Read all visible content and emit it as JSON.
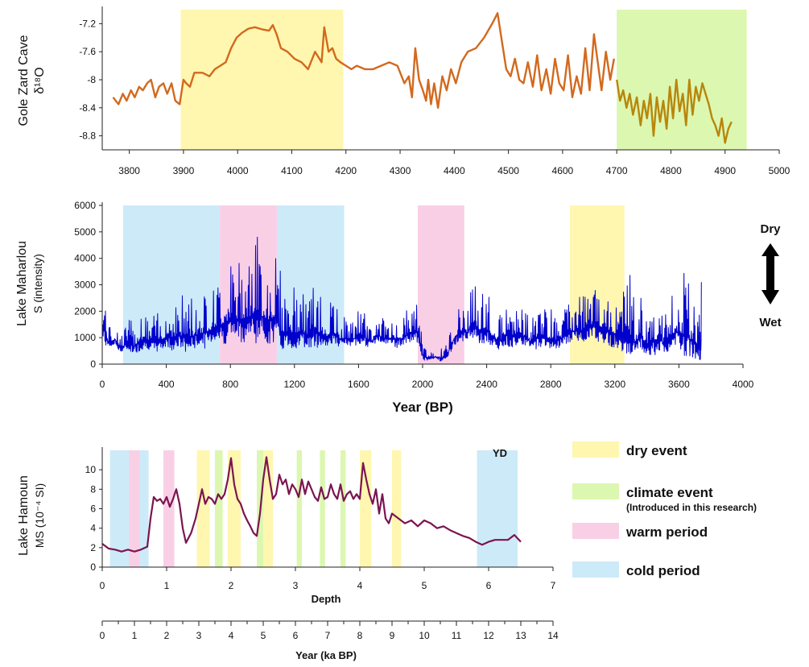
{
  "chart_data": [
    {
      "type": "line",
      "ylabel_line1": "Gole Zard Cave",
      "ylabel_line2": "δ¹⁸O",
      "xlim": [
        3750,
        5000
      ],
      "ylim": [
        -9.0,
        -7.0
      ],
      "y_inverted": true,
      "xticks": [
        "3800",
        "3900",
        "4000",
        "4100",
        "4200",
        "4300",
        "4400",
        "4500",
        "4600",
        "4700",
        "4800",
        "4900",
        "5000"
      ],
      "yticks": [
        "-7.2",
        "-7.6",
        "-8",
        "-8.4",
        "-8.8"
      ],
      "line_color": "#d2691e",
      "line_color2": "#b8860b",
      "bands": [
        {
          "kind": "dry",
          "x0": 3895,
          "x1": 4195
        },
        {
          "kind": "climate",
          "x0": 4700,
          "x1": 4940
        }
      ],
      "series": [
        {
          "x": [
            3770,
            3780,
            3788,
            3795,
            3803,
            3810,
            3818,
            3825,
            3833,
            3840,
            3848,
            3855,
            3863,
            3870,
            3878,
            3885,
            3893,
            3900,
            3905,
            3912,
            3920,
            3935,
            3948,
            3958,
            3968,
            3978,
            3988,
            3998,
            4008,
            4020,
            4032,
            4045,
            4058,
            4065,
            4072,
            4080,
            4092,
            4105,
            4118,
            4130,
            4143,
            4155,
            4160,
            4168,
            4175,
            4182,
            4190,
            4200,
            4210,
            4220,
            4235,
            4250,
            4265,
            4280,
            4295,
            4308,
            4316,
            4322,
            4328,
            4335,
            4342,
            4348,
            4352,
            4357,
            4363,
            4370,
            4378,
            4386,
            4394,
            4403,
            4413,
            4425,
            4440,
            4455,
            4470,
            4480,
            4488,
            4496,
            4504,
            4512,
            4520,
            4528,
            4536,
            4545,
            4553,
            4561,
            4570,
            4578,
            4586,
            4594,
            4602,
            4610,
            4618,
            4626,
            4634,
            4642,
            4650,
            4658,
            4665,
            4672,
            4680,
            4688,
            4695
          ],
          "y": [
            -8.25,
            -8.35,
            -8.2,
            -8.3,
            -8.15,
            -8.25,
            -8.1,
            -8.15,
            -8.05,
            -8.0,
            -8.25,
            -8.1,
            -8.05,
            -8.2,
            -8.05,
            -8.3,
            -8.35,
            -8.0,
            -8.05,
            -8.1,
            -7.9,
            -7.9,
            -7.95,
            -7.85,
            -7.8,
            -7.75,
            -7.55,
            -7.4,
            -7.33,
            -7.27,
            -7.25,
            -7.28,
            -7.3,
            -7.22,
            -7.35,
            -7.55,
            -7.6,
            -7.7,
            -7.75,
            -7.85,
            -7.6,
            -7.75,
            -7.25,
            -7.6,
            -7.55,
            -7.7,
            -7.75,
            -7.8,
            -7.85,
            -7.8,
            -7.85,
            -7.85,
            -7.8,
            -7.75,
            -7.8,
            -8.05,
            -7.95,
            -8.25,
            -7.55,
            -8.0,
            -8.15,
            -8.3,
            -8.0,
            -8.35,
            -8.05,
            -8.4,
            -7.95,
            -8.15,
            -7.85,
            -8.05,
            -7.75,
            -7.6,
            -7.55,
            -7.4,
            -7.2,
            -7.05,
            -7.45,
            -7.85,
            -7.95,
            -7.7,
            -8.0,
            -8.05,
            -7.75,
            -8.1,
            -7.65,
            -8.15,
            -7.85,
            -8.2,
            -7.7,
            -8.05,
            -8.15,
            -7.65,
            -8.25,
            -7.95,
            -8.2,
            -7.55,
            -8.15,
            -7.35,
            -7.75,
            -8.15,
            -7.6,
            -8.0,
            -7.7
          ]
        },
        {
          "x": [
            4700,
            4706,
            4712,
            4718,
            4724,
            4730,
            4737,
            4744,
            4750,
            4756,
            4762,
            4768,
            4774,
            4780,
            4786,
            4792,
            4798,
            4804,
            4810,
            4816,
            4822,
            4828,
            4834,
            4840,
            4846,
            4852,
            4858,
            4864,
            4870,
            4876,
            4882,
            4888,
            4894,
            4900,
            4906,
            4912
          ],
          "y": [
            -8.0,
            -8.3,
            -8.15,
            -8.4,
            -8.2,
            -8.5,
            -8.25,
            -8.65,
            -8.3,
            -8.55,
            -8.2,
            -8.8,
            -8.25,
            -8.6,
            -8.3,
            -8.7,
            -8.1,
            -8.55,
            -8.0,
            -8.45,
            -8.2,
            -8.65,
            -8.0,
            -8.5,
            -8.1,
            -8.3,
            -8.05,
            -8.2,
            -8.35,
            -8.55,
            -8.65,
            -8.8,
            -8.55,
            -8.9,
            -8.7,
            -8.6
          ]
        }
      ]
    },
    {
      "type": "line",
      "ylabel_line1": "Lake  Maharlou",
      "ylabel_line2": "S (intensity)",
      "xlabel": "Year (BP)",
      "xlim": [
        0,
        4000
      ],
      "ylim": [
        0,
        6000
      ],
      "xticks": [
        "0",
        "400",
        "800",
        "1200",
        "1600",
        "2000",
        "2400",
        "2800",
        "3200",
        "3600",
        "4000"
      ],
      "yticks": [
        "0",
        "1000",
        "2000",
        "3000",
        "4000",
        "5000",
        "6000"
      ],
      "line_color": "#0000cc",
      "bands": [
        {
          "kind": "cold",
          "x0": 130,
          "x1": 735
        },
        {
          "kind": "warm",
          "x0": 735,
          "x1": 1090
        },
        {
          "kind": "cold",
          "x0": 1090,
          "x1": 1510
        },
        {
          "kind": "warm",
          "x0": 1970,
          "x1": 2260
        },
        {
          "kind": "dry",
          "x0": 2920,
          "x1": 3260
        }
      ],
      "dry_label": "Dry",
      "wet_label": "Wet",
      "series": [
        {
          "x": [
            0,
            40,
            80,
            120,
            160,
            200,
            240,
            280,
            320,
            360,
            400,
            440,
            480,
            520,
            560,
            600,
            640,
            680,
            720,
            760,
            800,
            840,
            880,
            920,
            960,
            1000,
            1040,
            1080,
            1120,
            1160,
            1200,
            1240,
            1280,
            1320,
            1360,
            1400,
            1440,
            1480,
            1520,
            1560,
            1600,
            1640,
            1680,
            1720,
            1760,
            1800,
            1840,
            1880,
            1920,
            1960,
            2000,
            2040,
            2080,
            2120,
            2160,
            2200,
            2240,
            2280,
            2320,
            2360,
            2400,
            2440,
            2480,
            2520,
            2560,
            2600,
            2640,
            2680,
            2720,
            2760,
            2800,
            2840,
            2880,
            2920,
            2960,
            3000,
            3040,
            3080,
            3120,
            3160,
            3200,
            3240,
            3280,
            3320,
            3360,
            3400,
            3440,
            3480,
            3520,
            3560,
            3600,
            3640,
            3680,
            3720,
            3740
          ],
          "y_low": [
            800,
            600,
            700,
            400,
            500,
            400,
            500,
            600,
            400,
            500,
            600,
            500,
            600,
            400,
            500,
            700,
            600,
            800,
            900,
            700,
            1000,
            900,
            800,
            1000,
            800,
            900,
            700,
            800,
            500,
            600,
            500,
            700,
            600,
            500,
            700,
            600,
            800,
            600,
            700,
            600,
            800,
            700,
            600,
            900,
            700,
            800,
            600,
            700,
            800,
            900,
            100,
            150,
            200,
            100,
            300,
            700,
            900,
            800,
            1000,
            700,
            800,
            600,
            500,
            700,
            600,
            800,
            700,
            500,
            600,
            700,
            500,
            600,
            700,
            800,
            900,
            800,
            1000,
            900,
            800,
            700,
            600,
            500,
            400,
            300,
            500,
            400,
            300,
            500,
            300,
            600,
            400,
            300,
            200,
            100,
            200
          ],
          "y_high": [
            3700,
            1400,
            1600,
            1200,
            1800,
            1500,
            2200,
            1800,
            2100,
            1900,
            2400,
            2600,
            2500,
            2900,
            2700,
            2400,
            3000,
            2800,
            3200,
            3900,
            4000,
            3800,
            4500,
            4200,
            5000,
            4500,
            4400,
            4800,
            3300,
            3000,
            3100,
            2800,
            2600,
            3200,
            2700,
            2300,
            2400,
            2000,
            1800,
            1700,
            2200,
            1900,
            1600,
            1700,
            1800,
            1500,
            2000,
            1800,
            2300,
            2500,
            1100,
            400,
            500,
            600,
            900,
            2000,
            2300,
            2400,
            3400,
            2600,
            2800,
            2200,
            1900,
            2200,
            2500,
            2400,
            2000,
            1800,
            2400,
            2100,
            2300,
            1800,
            2100,
            2500,
            2400,
            2700,
            3000,
            2900,
            3100,
            2700,
            2800,
            2300,
            4300,
            2400,
            2600,
            1800,
            2600,
            2300,
            1900,
            2800,
            3700,
            3400,
            3000,
            2700,
            3100
          ]
        }
      ]
    },
    {
      "type": "line",
      "ylabel_line1": "Lake Hamoun",
      "ylabel_line2": "MS (10⁻⁴ SI)",
      "xlabel": "Depth",
      "xlabel2": "Year (ka BP)",
      "xlim": [
        0,
        7
      ],
      "ylim": [
        0,
        12
      ],
      "xticks": [
        "0",
        "1",
        "2",
        "3",
        "4",
        "5",
        "6",
        "7"
      ],
      "yticks": [
        "0",
        "2",
        "4",
        "6",
        "8",
        "10"
      ],
      "x2ticks": [
        "0",
        "1",
        "2",
        "3",
        "4",
        "5",
        "6",
        "7",
        "8",
        "9",
        "10",
        "11",
        "12",
        "13",
        "14"
      ],
      "line_color": "#7b1450",
      "bands": [
        {
          "kind": "cold",
          "x0": 0.12,
          "x1": 0.72
        },
        {
          "kind": "warm",
          "x0": 0.42,
          "x1": 0.58
        },
        {
          "kind": "warm",
          "x0": 0.95,
          "x1": 1.12
        },
        {
          "kind": "dry",
          "x0": 1.47,
          "x1": 1.67
        },
        {
          "kind": "climate",
          "x0": 1.75,
          "x1": 1.87
        },
        {
          "kind": "dry",
          "x0": 1.95,
          "x1": 2.15
        },
        {
          "kind": "climate",
          "x0": 2.4,
          "x1": 2.5
        },
        {
          "kind": "dry",
          "x0": 2.5,
          "x1": 2.65
        },
        {
          "kind": "climate",
          "x0": 3.02,
          "x1": 3.1
        },
        {
          "kind": "climate",
          "x0": 3.38,
          "x1": 3.46
        },
        {
          "kind": "climate",
          "x0": 3.7,
          "x1": 3.78
        },
        {
          "kind": "dry",
          "x0": 4.0,
          "x1": 4.18
        },
        {
          "kind": "dry",
          "x0": 4.5,
          "x1": 4.64
        },
        {
          "kind": "cold",
          "x0": 5.82,
          "x1": 6.45
        }
      ],
      "yd_label": "YD",
      "series": [
        {
          "x": [
            0.0,
            0.1,
            0.2,
            0.3,
            0.4,
            0.5,
            0.6,
            0.7,
            0.75,
            0.8,
            0.85,
            0.9,
            0.95,
            1.0,
            1.05,
            1.1,
            1.15,
            1.2,
            1.25,
            1.3,
            1.38,
            1.45,
            1.5,
            1.55,
            1.6,
            1.65,
            1.7,
            1.75,
            1.8,
            1.85,
            1.9,
            1.95,
            2.0,
            2.05,
            2.1,
            2.15,
            2.2,
            2.25,
            2.3,
            2.35,
            2.4,
            2.45,
            2.5,
            2.55,
            2.6,
            2.65,
            2.7,
            2.75,
            2.8,
            2.85,
            2.9,
            2.95,
            3.0,
            3.05,
            3.1,
            3.15,
            3.2,
            3.25,
            3.3,
            3.35,
            3.4,
            3.45,
            3.5,
            3.55,
            3.6,
            3.65,
            3.7,
            3.75,
            3.8,
            3.85,
            3.9,
            3.95,
            4.0,
            4.05,
            4.1,
            4.15,
            4.2,
            4.25,
            4.3,
            4.35,
            4.4,
            4.45,
            4.5,
            4.6,
            4.7,
            4.8,
            4.9,
            5.0,
            5.1,
            5.2,
            5.3,
            5.4,
            5.5,
            5.6,
            5.7,
            5.8,
            5.9,
            6.0,
            6.1,
            6.2,
            6.3,
            6.4,
            6.5
          ],
          "y": [
            2.4,
            1.9,
            1.8,
            1.6,
            1.8,
            1.6,
            1.8,
            2.1,
            5.0,
            7.2,
            6.8,
            7.0,
            6.5,
            7.2,
            6.2,
            7.0,
            8.0,
            6.5,
            4.0,
            2.5,
            3.5,
            5.0,
            6.5,
            8.0,
            6.5,
            7.2,
            7.0,
            6.5,
            7.5,
            7.0,
            7.5,
            9.0,
            11.2,
            8.5,
            7.0,
            6.5,
            5.5,
            4.8,
            4.2,
            3.5,
            3.2,
            5.5,
            9.0,
            11.3,
            9.0,
            7.0,
            7.5,
            9.5,
            8.5,
            9.0,
            7.5,
            8.5,
            8.0,
            7.2,
            9.0,
            7.5,
            8.8,
            8.0,
            7.2,
            6.8,
            8.2,
            7.0,
            7.2,
            8.5,
            7.5,
            7.0,
            8.5,
            6.8,
            7.5,
            7.8,
            7.0,
            7.5,
            7.0,
            10.7,
            9.0,
            7.5,
            6.5,
            8.0,
            5.5,
            7.5,
            5.0,
            4.5,
            5.5,
            5.0,
            4.5,
            4.8,
            4.2,
            4.8,
            4.5,
            4.0,
            4.2,
            3.8,
            3.5,
            3.2,
            3.0,
            2.6,
            2.3,
            2.6,
            2.8,
            2.8,
            2.8,
            3.3,
            2.6
          ]
        }
      ]
    }
  ],
  "legend": [
    {
      "kind": "dry",
      "label": "dry event",
      "sub": ""
    },
    {
      "kind": "climate",
      "label": "climate event",
      "sub": "(Introduced in this research)"
    },
    {
      "kind": "warm",
      "label": "warm period",
      "sub": ""
    },
    {
      "kind": "cold",
      "label": "cold period",
      "sub": ""
    }
  ],
  "band_colors": {
    "dry": "#fff6b0",
    "climate": "#dcf7b0",
    "warm": "#f9cfe6",
    "cold": "#cdeaf8"
  }
}
